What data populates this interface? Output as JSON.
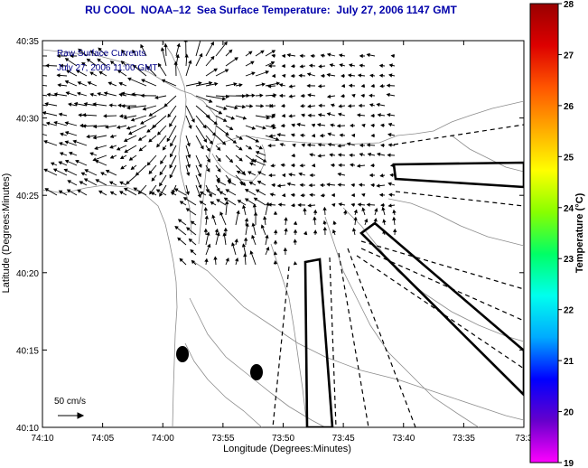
{
  "title": "RU COOL  NOAA–12  Sea Surface Temperature:  July 27, 2006 1147 GMT",
  "legend_lines": [
    "Raw Surface Currents",
    "July 27, 2006 11:00 GMT"
  ],
  "scale_label": "50 cm/s",
  "axes": {
    "xlabel": "Longitude (Degrees:Minutes)",
    "ylabel": "Latitude (Degrees:Minutes)",
    "xticks": [
      "74:10",
      "74:05",
      "74:00",
      "73:55",
      "73:50",
      "73:45",
      "73:40",
      "73:35",
      "73:3"
    ],
    "yticks": [
      "40:35",
      "40:30",
      "40:25",
      "40:20",
      "40:15",
      "40:10"
    ]
  },
  "colorbar": {
    "label": "Temperature (°C)",
    "ticks": [
      "28",
      "27",
      "26",
      "25",
      "24",
      "23",
      "22",
      "21",
      "20",
      "19"
    ],
    "colors": [
      "#ff00ff",
      "#6600cc",
      "#0000ff",
      "#00aaff",
      "#00ffee",
      "#00ff66",
      "#88ff00",
      "#ffff00",
      "#ffaa00",
      "#ff5500",
      "#dd0000",
      "#990000"
    ]
  },
  "colors": {
    "title": "#0000aa",
    "legend_text": "#000088",
    "lines": "#000000",
    "contour": "#8c8c8c"
  }
}
